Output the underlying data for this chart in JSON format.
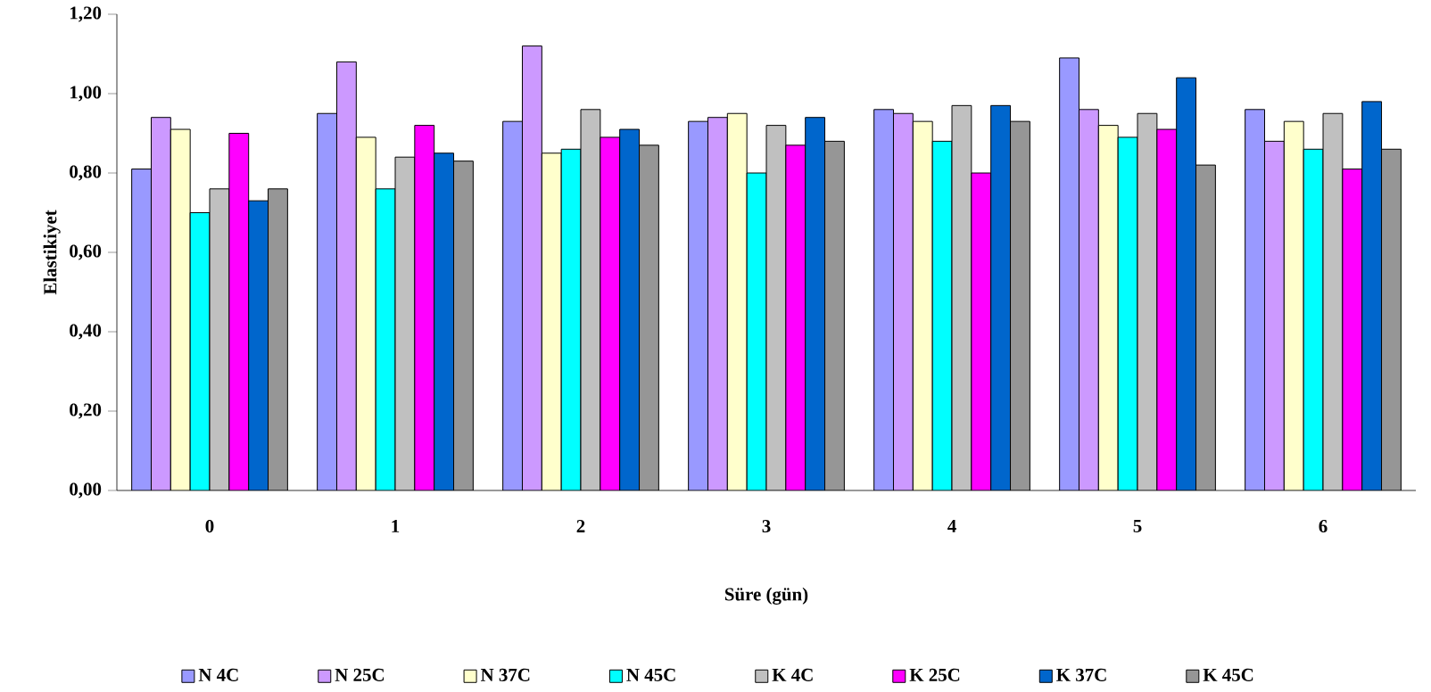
{
  "chart_data": {
    "type": "bar",
    "xlabel": "Süre (gün)",
    "ylabel": "Elastikiyet",
    "categories": [
      "0",
      "1",
      "2",
      "3",
      "4",
      "5",
      "6"
    ],
    "ylim": [
      0,
      1.2
    ],
    "yticks": [
      {
        "value": 0,
        "label": "0,00"
      },
      {
        "value": 0.2,
        "label": "0,20"
      },
      {
        "value": 0.4,
        "label": "0,40"
      },
      {
        "value": 0.6,
        "label": "0,60"
      },
      {
        "value": 0.8,
        "label": "0,80"
      },
      {
        "value": 1.0,
        "label": "1,00"
      },
      {
        "value": 1.2,
        "label": "1,20"
      }
    ],
    "legend": "bottom",
    "grid": false,
    "series": [
      {
        "name": "N 4C",
        "color": "#9999ff",
        "values": [
          0.81,
          0.95,
          0.93,
          0.93,
          0.96,
          1.09,
          0.96
        ]
      },
      {
        "name": "N 25C",
        "color": "#cc99ff",
        "values": [
          0.94,
          1.08,
          1.12,
          0.94,
          0.95,
          0.96,
          0.88
        ]
      },
      {
        "name": "N 37C",
        "color": "#ffffcc",
        "values": [
          0.91,
          0.89,
          0.85,
          0.95,
          0.93,
          0.92,
          0.93
        ]
      },
      {
        "name": "N 45C",
        "color": "#00ffff",
        "values": [
          0.7,
          0.76,
          0.86,
          0.8,
          0.88,
          0.89,
          0.86
        ]
      },
      {
        "name": "K 4C",
        "color": "#c0c0c0",
        "values": [
          0.76,
          0.84,
          0.96,
          0.92,
          0.97,
          0.95,
          0.95
        ]
      },
      {
        "name": "K 25C",
        "color": "#ff00ff",
        "values": [
          0.9,
          0.92,
          0.89,
          0.87,
          0.8,
          0.91,
          0.81
        ]
      },
      {
        "name": "K 37C",
        "color": "#0066cc",
        "values": [
          0.73,
          0.85,
          0.91,
          0.94,
          0.97,
          1.04,
          0.98
        ]
      },
      {
        "name": "K 45C",
        "color": "#969696",
        "values": [
          0.76,
          0.83,
          0.87,
          0.88,
          0.93,
          0.82,
          0.86
        ]
      }
    ]
  }
}
